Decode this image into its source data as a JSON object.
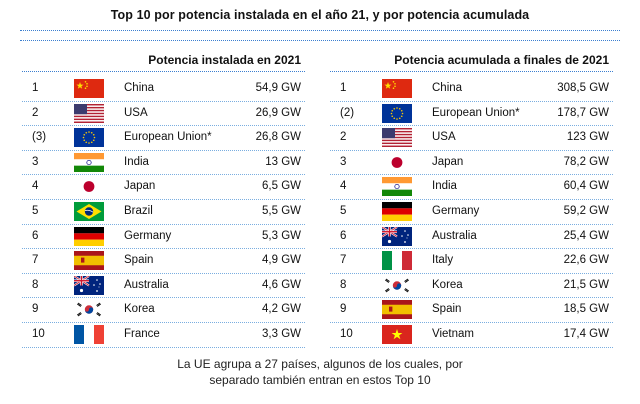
{
  "title": "Top 10 por potencia instalada en el año 21, y por potencia acumulada",
  "left_table": {
    "heading": "Potencia instalada en 2021",
    "rows": [
      {
        "rank": "1",
        "flag": "china-flag",
        "country": "China",
        "value": "54,9 GW"
      },
      {
        "rank": "2",
        "flag": "usa-flag",
        "country": "USA",
        "value": "26,9 GW"
      },
      {
        "rank": "(3)",
        "flag": "eu-flag",
        "country": "European Union*",
        "value": "26,8 GW"
      },
      {
        "rank": "3",
        "flag": "india-flag",
        "country": "India",
        "value": "13 GW"
      },
      {
        "rank": "4",
        "flag": "japan-flag",
        "country": "Japan",
        "value": "6,5 GW"
      },
      {
        "rank": "5",
        "flag": "brazil-flag",
        "country": "Brazil",
        "value": "5,5 GW"
      },
      {
        "rank": "6",
        "flag": "germany-flag",
        "country": "Germany",
        "value": "5,3 GW"
      },
      {
        "rank": "7",
        "flag": "spain-flag",
        "country": "Spain",
        "value": "4,9 GW"
      },
      {
        "rank": "8",
        "flag": "australia-flag",
        "country": "Australia",
        "value": "4,6 GW"
      },
      {
        "rank": "9",
        "flag": "korea-flag",
        "country": "Korea",
        "value": "4,2 GW"
      },
      {
        "rank": "10",
        "flag": "france-flag",
        "country": "France",
        "value": "3,3 GW"
      }
    ]
  },
  "right_table": {
    "heading": "Potencia acumulada a finales de 2021",
    "rows": [
      {
        "rank": "1",
        "flag": "china-flag",
        "country": "China",
        "value": "308,5 GW"
      },
      {
        "rank": "(2)",
        "flag": "eu-flag",
        "country": "European Union*",
        "value": "178,7 GW"
      },
      {
        "rank": "2",
        "flag": "usa-flag",
        "country": "USA",
        "value": "123 GW"
      },
      {
        "rank": "3",
        "flag": "japan-flag",
        "country": "Japan",
        "value": "78,2 GW"
      },
      {
        "rank": "4",
        "flag": "india-flag",
        "country": "India",
        "value": "60,4 GW"
      },
      {
        "rank": "5",
        "flag": "germany-flag",
        "country": "Germany",
        "value": "59,2 GW"
      },
      {
        "rank": "6",
        "flag": "australia-flag",
        "country": "Australia",
        "value": "25,4 GW"
      },
      {
        "rank": "7",
        "flag": "italy-flag",
        "country": "Italy",
        "value": "22,6 GW"
      },
      {
        "rank": "8",
        "flag": "korea-flag",
        "country": "Korea",
        "value": "21,5 GW"
      },
      {
        "rank": "9",
        "flag": "spain-flag",
        "country": "Spain",
        "value": "18,5 GW"
      },
      {
        "rank": "10",
        "flag": "vietnam-flag",
        "country": "Vietnam",
        "value": "17,4 GW"
      }
    ]
  },
  "footnote": {
    "line1": "La UE agrupa a 27 países, algunos de los cuales, por",
    "line2": "separado también entran en estos Top 10"
  }
}
